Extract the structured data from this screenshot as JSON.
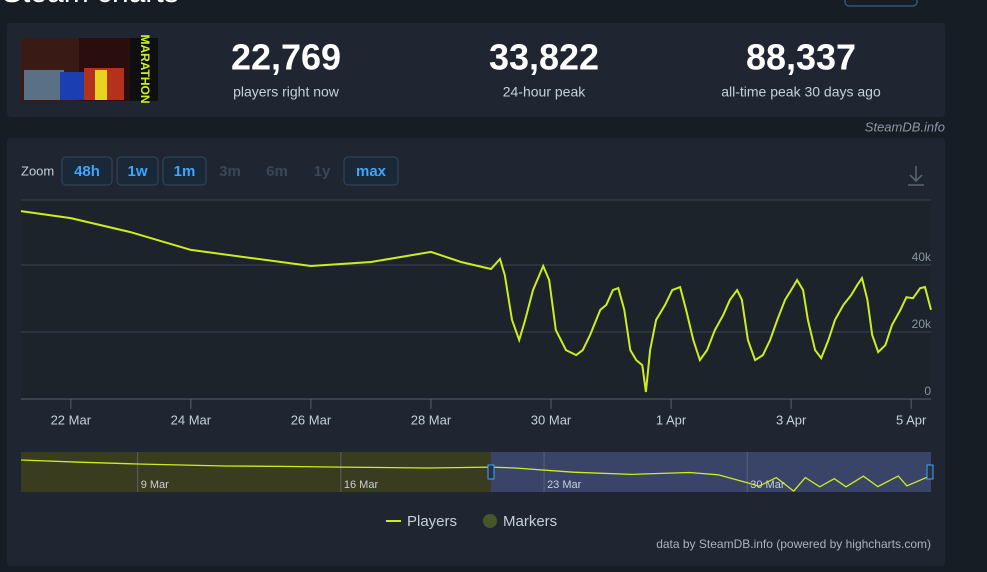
{
  "header": {
    "title": "Steam charts"
  },
  "image_text": "MARATHON",
  "stats": [
    {
      "value": "22,769",
      "label": "players right now"
    },
    {
      "value": "33,822",
      "label": "24-hour peak"
    },
    {
      "value": "88,337",
      "label": "all-time peak 30 days ago"
    }
  ],
  "watermark": "SteamDB.info",
  "zoom": {
    "label": "Zoom",
    "buttons": [
      {
        "label": "48h",
        "active": true
      },
      {
        "label": "1w",
        "active": true
      },
      {
        "label": "1m",
        "active": true
      },
      {
        "label": "3m",
        "active": false
      },
      {
        "label": "6m",
        "active": false
      },
      {
        "label": "1y",
        "active": false
      },
      {
        "label": "max",
        "active": true
      }
    ]
  },
  "chart_data": [
    {
      "type": "line",
      "x": [
        21.17,
        22,
        23,
        24,
        25,
        26,
        27,
        28,
        28.5,
        29.0,
        29.15,
        29.23,
        29.35,
        29.47,
        29.57,
        29.7,
        29.87,
        29.97,
        30.08,
        30.25,
        30.42,
        30.53,
        30.65,
        30.82,
        30.92,
        31.03,
        31.12,
        31.22,
        31.32,
        31.42,
        31.52,
        31.58,
        31.65,
        31.75,
        31.9,
        32.02,
        32.15,
        32.25,
        32.37,
        32.48,
        32.6,
        32.73,
        32.87,
        32.98,
        33.1,
        33.18,
        33.28,
        33.4,
        33.53,
        33.65,
        33.77,
        33.9,
        34.0,
        34.1,
        34.2,
        34.28,
        34.4,
        34.5,
        34.62,
        34.73,
        34.87,
        35.0,
        35.1,
        35.18,
        35.27,
        35.35,
        35.45,
        35.57,
        35.68,
        35.82,
        35.92,
        36.03,
        36.15,
        36.23,
        36.33
      ],
      "series": [
        {
          "name": "Players",
          "color": "#cdee1e",
          "values": [
            56100,
            54000,
            49800,
            44500,
            42100,
            39700,
            40900,
            43900,
            40900,
            38800,
            41800,
            37000,
            23600,
            17600,
            23600,
            32500,
            39700,
            35500,
            20600,
            14600,
            13100,
            14600,
            19100,
            26600,
            28100,
            32500,
            33100,
            26600,
            14600,
            11600,
            10100,
            2100,
            14600,
            23600,
            28100,
            32500,
            33400,
            26600,
            17600,
            11600,
            14600,
            20600,
            25100,
            29600,
            32500,
            29600,
            17600,
            11600,
            13100,
            17600,
            23600,
            29600,
            32500,
            35500,
            32500,
            23600,
            14600,
            12200,
            17600,
            23600,
            28100,
            31000,
            34000,
            36100,
            29600,
            19100,
            14000,
            16100,
            22100,
            26600,
            30400,
            30100,
            33100,
            33400,
            26600
          ]
        }
      ],
      "markers": {
        "name": "Markers",
        "color": "#48562b"
      },
      "xlim": [
        21.17,
        36.33
      ],
      "xticks": [
        {
          "value": 22,
          "label": "22 Mar"
        },
        {
          "value": 24,
          "label": "24 Mar"
        },
        {
          "value": 26,
          "label": "26 Mar"
        },
        {
          "value": 28,
          "label": "28 Mar"
        },
        {
          "value": 30,
          "label": "30 Mar"
        },
        {
          "value": 32,
          "label": "1 Apr"
        },
        {
          "value": 34,
          "label": "3 Apr"
        },
        {
          "value": 36,
          "label": "5 Apr"
        }
      ],
      "ylim": [
        0,
        60000
      ],
      "yticks": [
        0,
        {
          "value": 20000,
          "label": "20k"
        },
        {
          "value": 40000,
          "label": "40k"
        }
      ],
      "grid": true,
      "xgrid": false
    },
    {
      "type": "line",
      "x": [
        4.98,
        7,
        9,
        12,
        14,
        16,
        19,
        21.17,
        22,
        24,
        26,
        28,
        29,
        30,
        30.4,
        31,
        31.6,
        32,
        32.5,
        33,
        33.4,
        34,
        34.5,
        35.2,
        35.5,
        36.2
      ],
      "series": [
        {
          "name": "Players",
          "color": "#cdee1e",
          "values": [
            72000,
            67000,
            63000,
            58500,
            57500,
            56000,
            54000,
            56100,
            54000,
            44500,
            39700,
            43900,
            38800,
            20600,
            13100,
            32500,
            2100,
            32500,
            11600,
            30000,
            11600,
            35500,
            12200,
            36100,
            14000,
            33400
          ]
        }
      ],
      "xlim": [
        4.98,
        36.33
      ],
      "xticks": [
        {
          "value": 9,
          "label": "9 Mar"
        },
        {
          "value": 16,
          "label": "16 Mar"
        },
        {
          "value": 23,
          "label": "23 Mar"
        },
        {
          "value": 30,
          "label": "30 Mar"
        }
      ],
      "ylim": [
        0,
        90000
      ],
      "grid": false,
      "xgrid": true
    }
  ],
  "credit": "data by SteamDB.info (powered by highcharts.com)"
}
